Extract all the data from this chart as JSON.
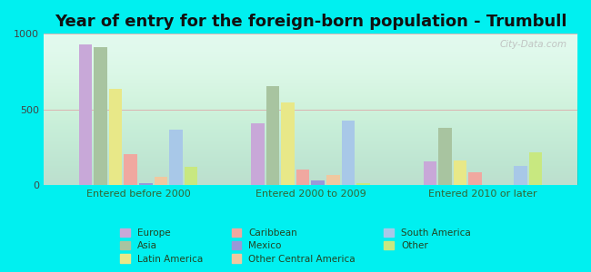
{
  "title": "Year of entry for the foreign-born population - Trumbull",
  "groups": [
    "Entered before 2000",
    "Entered 2000 to 2009",
    "Entered 2010 or later"
  ],
  "categories": [
    "Europe",
    "Asia",
    "Latin America",
    "Caribbean",
    "Mexico",
    "Other Central America",
    "South America",
    "Other"
  ],
  "values": {
    "Entered before 2000": [
      930,
      910,
      635,
      205,
      10,
      55,
      365,
      120
    ],
    "Entered 2000 to 2009": [
      410,
      655,
      545,
      105,
      30,
      65,
      425,
      10
    ],
    "Entered 2010 or later": [
      155,
      380,
      165,
      85,
      0,
      0,
      125,
      215
    ]
  },
  "colors": {
    "Europe": "#c8a8d8",
    "Asia": "#a8c4a0",
    "Latin America": "#e8e888",
    "Caribbean": "#f0a8a0",
    "Mexico": "#9898d8",
    "Other Central America": "#f0c8a0",
    "South America": "#a8c8e8",
    "Other": "#c8e880"
  },
  "ylim": [
    0,
    1000
  ],
  "yticks": [
    0,
    500,
    1000
  ],
  "fig_bg": "#00f0f0",
  "plot_bg": "#e8fdf0",
  "title_fontsize": 13,
  "watermark": "City-Data.com",
  "legend_order_col1": [
    "Europe",
    "Caribbean",
    "South America"
  ],
  "legend_order_col2": [
    "Asia",
    "Mexico",
    "Other"
  ],
  "legend_order_col3": [
    "Latin America",
    "Other Central America"
  ]
}
